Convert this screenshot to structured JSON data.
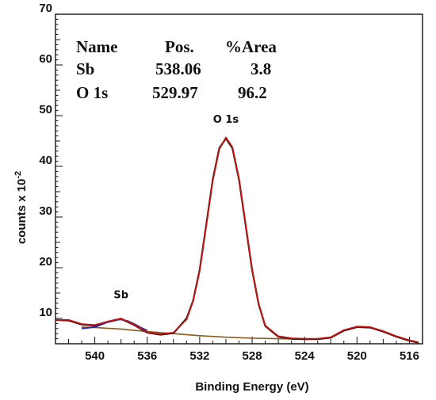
{
  "chart_data": {
    "type": "line",
    "xlabel": "Binding Energy (eV)",
    "ylabel": "counts x 10",
    "ylabel_exponent": "-2",
    "xlim": [
      543,
      515
    ],
    "ylim": [
      5,
      70
    ],
    "x_reversed": true,
    "x_ticks": [
      540,
      536,
      532,
      528,
      524,
      520,
      516
    ],
    "y_ticks": [
      10,
      20,
      30,
      40,
      50,
      60,
      70
    ],
    "grid": false,
    "table": {
      "headers": [
        "Name",
        "Pos.",
        "%Area"
      ],
      "rows": [
        {
          "name": "Sb",
          "pos": "538.06",
          "area": "3.8",
          "color": "#1a1a99"
        },
        {
          "name": "O 1s",
          "pos": "529.97",
          "area": "96.2",
          "color": "#111111"
        }
      ]
    },
    "annotations": [
      {
        "text": "O 1s",
        "x": 530.0,
        "y": 48.6
      },
      {
        "text": "Sb",
        "x": 538.0,
        "y": 14.0
      }
    ],
    "series": [
      {
        "role": "measured",
        "color": "#111111",
        "x": [
          543,
          542,
          541,
          540,
          539,
          538,
          537,
          536,
          535,
          534,
          533,
          532.5,
          532,
          531.5,
          531,
          530.5,
          530,
          529.5,
          529,
          528.5,
          528,
          527.5,
          527,
          526,
          525,
          524,
          523,
          522,
          521,
          520,
          519,
          518,
          517,
          516,
          515.3
        ],
        "y": [
          9.7,
          9.6,
          8.8,
          8.6,
          9.3,
          9.9,
          8.7,
          7.2,
          6.8,
          7.1,
          10.0,
          13.5,
          19.6,
          28.5,
          37.4,
          43.6,
          45.5,
          43.6,
          37.4,
          28.5,
          19.6,
          12.8,
          8.5,
          6.4,
          6.0,
          5.9,
          5.9,
          6.2,
          7.6,
          8.3,
          8.2,
          7.4,
          6.4,
          5.6,
          5.2
        ]
      },
      {
        "role": "envelope",
        "color": "#cc1111",
        "x": [
          543,
          542,
          541,
          540,
          539,
          538,
          537,
          536,
          535,
          534,
          533,
          532.5,
          532,
          531.5,
          531,
          530.5,
          530,
          529.5,
          529,
          528.5,
          528,
          527.5,
          527,
          526,
          525,
          524,
          523,
          522,
          521,
          520,
          519,
          518,
          517,
          516,
          515.3
        ],
        "y": [
          9.7,
          9.7,
          8.9,
          8.7,
          9.4,
          10.0,
          8.8,
          7.3,
          6.9,
          7.2,
          9.8,
          13.4,
          19.4,
          28.3,
          37.2,
          43.4,
          45.7,
          43.8,
          37.6,
          28.7,
          19.8,
          12.9,
          8.6,
          6.5,
          6.1,
          6.0,
          6.0,
          6.3,
          7.7,
          8.4,
          8.3,
          7.5,
          6.5,
          5.7,
          5.3
        ]
      },
      {
        "role": "Sb component",
        "color": "#2a2aa8",
        "x": [
          541,
          540,
          539.5,
          539,
          538.5,
          538,
          537.5,
          537,
          536.5,
          536
        ],
        "y": [
          8.0,
          8.3,
          8.8,
          9.3,
          9.7,
          9.8,
          9.5,
          8.9,
          8.2,
          7.6
        ]
      },
      {
        "role": "background",
        "color": "#8b5a1e",
        "x": [
          541,
          540,
          538,
          536,
          534,
          532,
          530,
          528,
          526,
          524
        ],
        "y": [
          8.3,
          8.2,
          7.9,
          7.4,
          7.0,
          6.6,
          6.3,
          6.1,
          6.0,
          5.9
        ]
      }
    ]
  }
}
